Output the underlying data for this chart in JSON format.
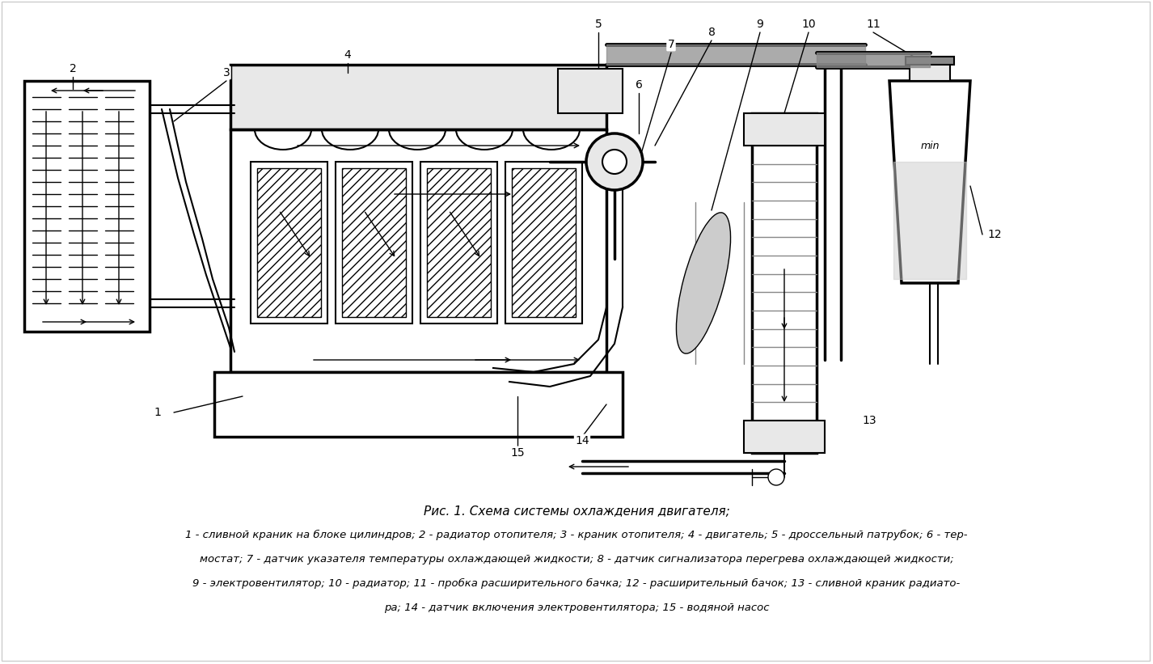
{
  "title": "Рис. 1. Схема системы охлаждения двигателя;",
  "caption_line1": "1 - сливной краник на блоке цилиндров; 2 - радиатор отопителя; 3 - краник отопителя; 4 - двигатель; 5 - дроссельный патрубок; 6 - тер-",
  "caption_line2": "мостат; 7 - датчик указателя температуры охлаждающей жидкости; 8 - датчик сигнализатора перегрева охлаждающей жидкости;",
  "caption_line3": "9 - электровентилятор; 10 - радиатор; 11 - пробка расширительного бачка; 12 - расширительный бачок; 13 - сливной краник радиато-",
  "caption_line4": "ра; 14 - датчик включения электровентилятора; 15 - водяной насос",
  "bg_color": "#ffffff",
  "fig_width": 14.26,
  "fig_height": 8.21,
  "title_fontsize": 11,
  "caption_fontsize": 9.5,
  "title_style": "italic",
  "caption_style": "italic"
}
